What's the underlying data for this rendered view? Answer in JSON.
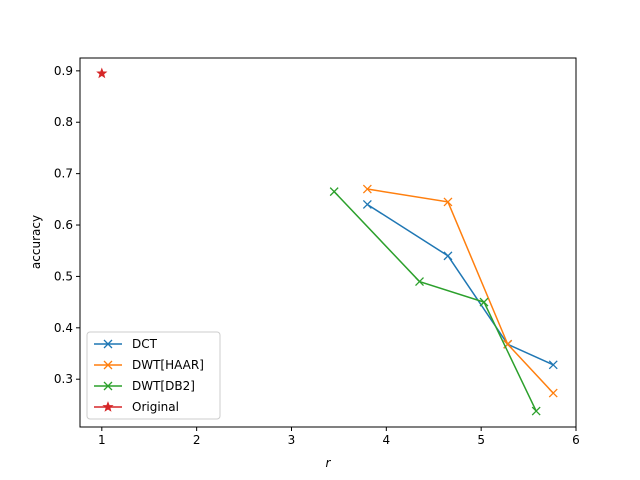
{
  "chart_data": {
    "type": "line",
    "xlabel": "r",
    "ylabel": "accuracy",
    "xlim": [
      0.77,
      6.0
    ],
    "ylim": [
      0.207,
      0.925
    ],
    "xticks": [
      1,
      2,
      3,
      4,
      5,
      6
    ],
    "yticks": [
      0.3,
      0.4,
      0.5,
      0.6,
      0.7,
      0.8,
      0.9
    ],
    "legend_position": "lower-left",
    "series": [
      {
        "name": "DCT",
        "color": "#1f77b4",
        "marker": "x",
        "x": [
          3.8,
          4.65,
          5.28,
          5.76
        ],
        "y": [
          0.64,
          0.54,
          0.368,
          0.328
        ]
      },
      {
        "name": "DWT[HAAR]",
        "color": "#ff7f0e",
        "marker": "x",
        "x": [
          3.8,
          4.65,
          5.28,
          5.76
        ],
        "y": [
          0.67,
          0.645,
          0.368,
          0.273
        ]
      },
      {
        "name": "DWT[DB2]",
        "color": "#2ca02c",
        "marker": "x",
        "x": [
          3.45,
          4.35,
          5.03,
          5.58
        ],
        "y": [
          0.665,
          0.49,
          0.45,
          0.238
        ]
      },
      {
        "name": "Original",
        "color": "#d62728",
        "marker": "star",
        "x": [
          1.0
        ],
        "y": [
          0.895
        ]
      }
    ]
  }
}
